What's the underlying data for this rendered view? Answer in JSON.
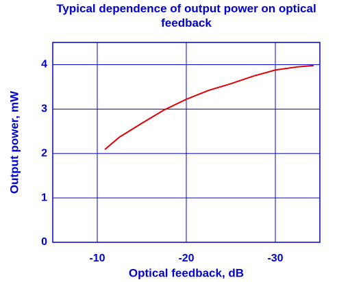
{
  "chart_data": {
    "type": "line",
    "title": "Typical dependence of output power on optical feedback",
    "x_label": "Optical feedback, dB",
    "y_label": "Output power, mW",
    "xlim": [
      -5,
      -35
    ],
    "xticks": [
      -10,
      -20,
      -30
    ],
    "ylim": [
      0,
      4.5
    ],
    "yticks": [
      0,
      1,
      2,
      3,
      4
    ],
    "grid": true,
    "axis_color": "#0000cc",
    "grid_color": "#0000cc",
    "x": [
      -10.85,
      -12.5,
      -15,
      -17.5,
      -20,
      -22.5,
      -25,
      -27.5,
      -30,
      -32.5,
      -34.3
    ],
    "series": [
      {
        "name": "Output power",
        "color": "#e00000",
        "values": [
          2.09,
          2.37,
          2.68,
          2.98,
          3.22,
          3.42,
          3.57,
          3.74,
          3.88,
          3.95,
          3.98
        ]
      }
    ]
  }
}
